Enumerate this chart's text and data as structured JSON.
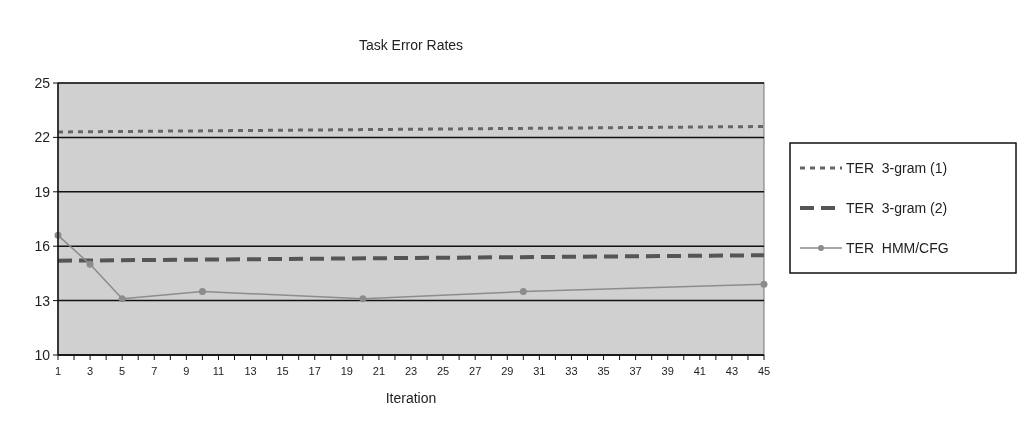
{
  "chart_data": {
    "type": "line",
    "title": "Task Error Rates",
    "xlabel": "Iteration",
    "xlim": [
      1,
      45
    ],
    "xticks": [
      1,
      {
        "value": 2,
        "label": null
      },
      3,
      {
        "value": 4,
        "label": null
      },
      5,
      {
        "value": 6,
        "label": null
      },
      7,
      {
        "value": 8,
        "label": null
      },
      9,
      {
        "value": 10,
        "label": null
      },
      11,
      {
        "value": 12,
        "label": null
      },
      13,
      {
        "value": 14,
        "label": null
      },
      15,
      {
        "value": 16,
        "label": null
      },
      17,
      {
        "value": 18,
        "label": null
      },
      19,
      {
        "value": 20,
        "label": null
      },
      21,
      {
        "value": 22,
        "label": null
      },
      23,
      {
        "value": 24,
        "label": null
      },
      25,
      {
        "value": 26,
        "label": null
      },
      27,
      {
        "value": 28,
        "label": null
      },
      29,
      {
        "value": 30,
        "label": null
      },
      31,
      {
        "value": 32,
        "label": null
      },
      33,
      {
        "value": 34,
        "label": null
      },
      35,
      {
        "value": 36,
        "label": null
      },
      37,
      {
        "value": 38,
        "label": null
      },
      39,
      {
        "value": 40,
        "label": null
      },
      41,
      {
        "value": 42,
        "label": null
      },
      43,
      {
        "value": 44,
        "label": null
      },
      45
    ],
    "ylim": [
      10,
      25
    ],
    "yticks": [
      10,
      13,
      16,
      19,
      22,
      25
    ],
    "grid": "y",
    "legend": "right",
    "series": [
      {
        "name": "TER  3-gram (1)",
        "color": "#666666",
        "x": [
          1,
          45
        ],
        "values": [
          22.3,
          22.6
        ],
        "line_style": "dotted",
        "marker": "none"
      },
      {
        "name": "TER  3-gram (2)",
        "color": "#555555",
        "x": [
          1,
          45
        ],
        "values": [
          15.2,
          15.5
        ],
        "line_style": "dashed",
        "marker": "none"
      },
      {
        "name": "TER  HMM/CFG",
        "color": "#8c8c8c",
        "x": [
          1,
          3,
          5,
          10,
          20,
          30,
          45
        ],
        "values": [
          16.6,
          15.0,
          13.1,
          13.5,
          13.1,
          13.5,
          13.9
        ],
        "line_style": "solid",
        "marker": "circle"
      }
    ]
  }
}
